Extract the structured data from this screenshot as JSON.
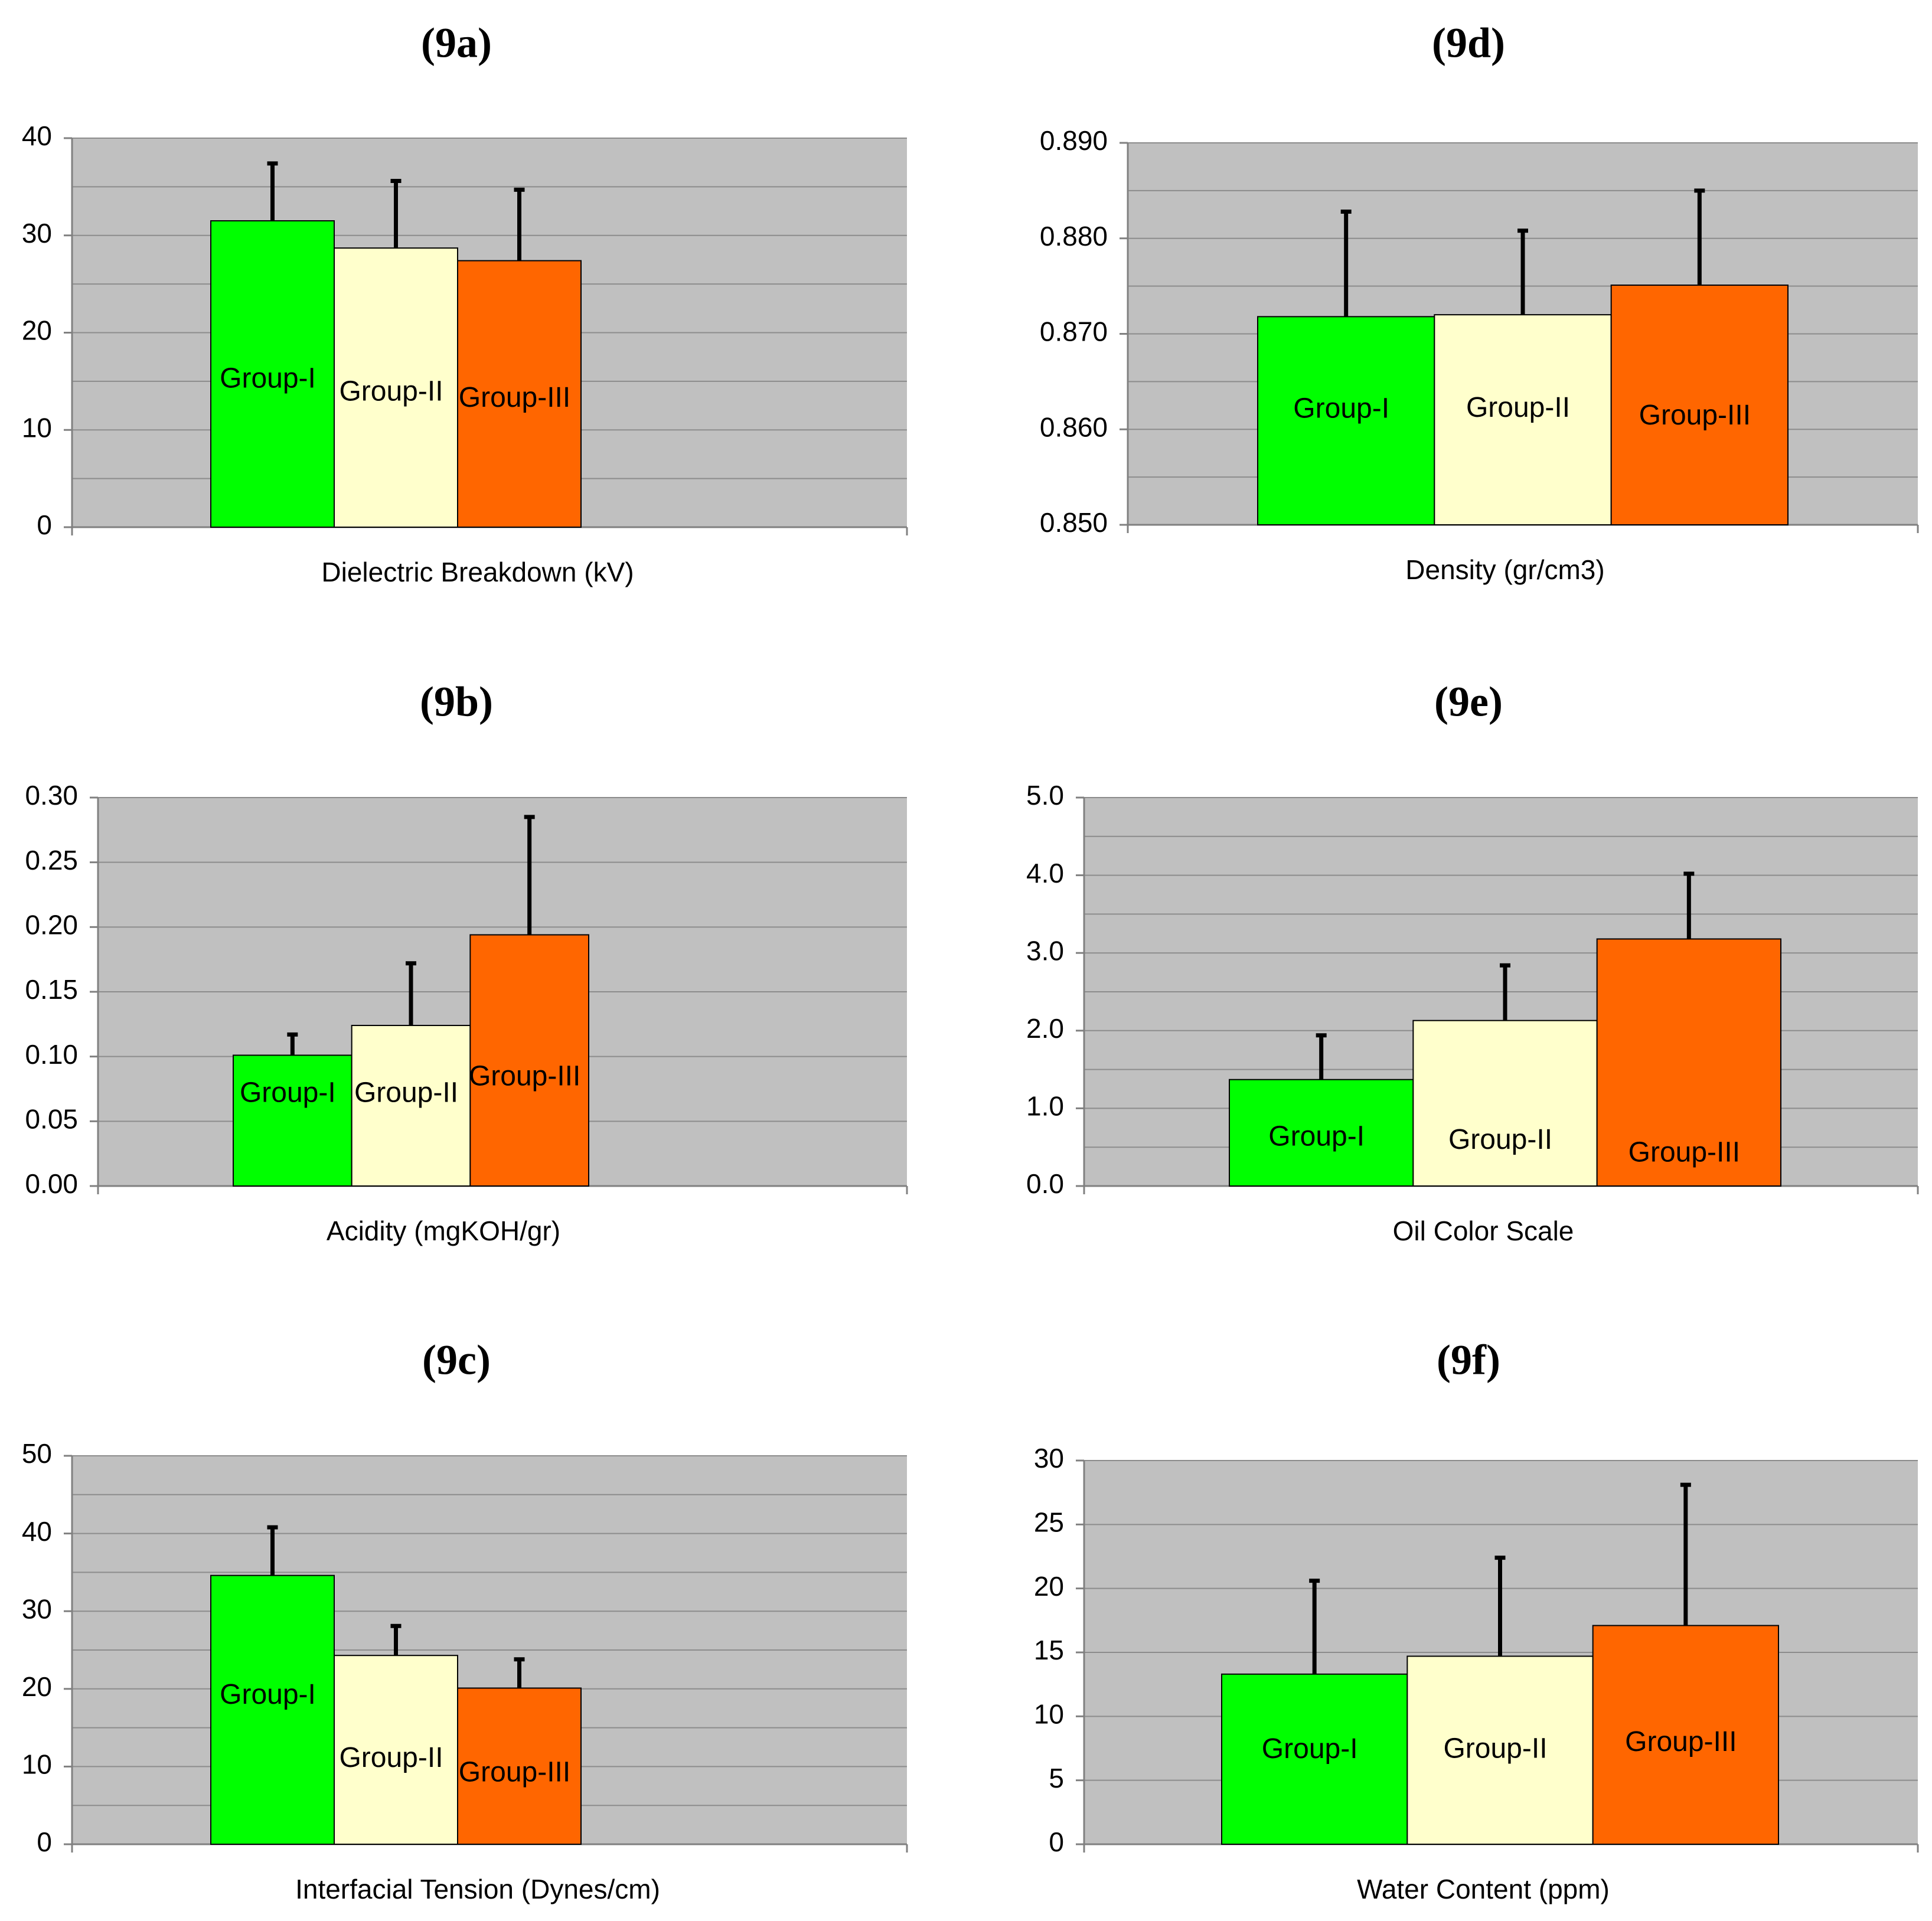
{
  "colors": {
    "plot_bg": "#c0c0c0",
    "gridline": "#8c8c8c",
    "axis": "#808080",
    "bar_outline": "#000000",
    "error_bar": "#000000",
    "group_I": "#00ff00",
    "group_II": "#ffffcc",
    "group_III": "#ff6600"
  },
  "chart_data": [
    {
      "id": "9a",
      "type": "bar",
      "title": "(9a)",
      "xlabel": "Dielectric Breakdown (kV)",
      "ylabel": "",
      "categories": [
        "Group-I",
        "Group-II",
        "Group-III"
      ],
      "values": [
        31.5,
        28.7,
        27.4
      ],
      "error_plus": [
        5.9,
        6.9,
        7.3
      ],
      "ylim": [
        0,
        40
      ],
      "major_ticks": [
        0,
        10,
        20,
        30,
        40
      ],
      "tick_labels": [
        "0",
        "10",
        "20",
        "30",
        "40"
      ],
      "minor_step": 5,
      "grid": true
    },
    {
      "id": "9b",
      "type": "bar",
      "title": "(9b)",
      "xlabel": "Acidity (mgKOH/gr)",
      "ylabel": "",
      "categories": [
        "Group-I",
        "Group-II",
        "Group-III"
      ],
      "values": [
        0.101,
        0.124,
        0.194
      ],
      "error_plus": [
        0.016,
        0.048,
        0.091
      ],
      "ylim": [
        0,
        0.3
      ],
      "major_ticks": [
        0,
        0.05,
        0.1,
        0.15,
        0.2,
        0.25,
        0.3
      ],
      "tick_labels": [
        "0.00",
        "0.05",
        "0.10",
        "0.15",
        "0.20",
        "0.25",
        "0.30"
      ],
      "minor_step": 0.05,
      "grid": true
    },
    {
      "id": "9c",
      "type": "bar",
      "title": "(9c)",
      "xlabel": "Interfacial Tension (Dynes/cm)",
      "ylabel": "",
      "categories": [
        "Group-I",
        "Group-II",
        "Group-III"
      ],
      "values": [
        34.6,
        24.3,
        20.1
      ],
      "error_plus": [
        6.2,
        3.8,
        3.7
      ],
      "ylim": [
        0,
        50
      ],
      "major_ticks": [
        0,
        10,
        20,
        30,
        40,
        50
      ],
      "tick_labels": [
        "0",
        "10",
        "20",
        "30",
        "40",
        "50"
      ],
      "minor_step": 5,
      "grid": true
    },
    {
      "id": "9d",
      "type": "bar",
      "title": "(9d)",
      "xlabel": "Density (gr/cm3)",
      "ylabel": "",
      "categories": [
        "Group-I",
        "Group-II",
        "Group-III"
      ],
      "values": [
        0.8718,
        0.872,
        0.8751
      ],
      "error_plus": [
        0.011,
        0.0088,
        0.0099
      ],
      "ylim": [
        0.85,
        0.89
      ],
      "major_ticks": [
        0.85,
        0.86,
        0.87,
        0.88,
        0.89
      ],
      "tick_labels": [
        "0.850",
        "0.860",
        "0.870",
        "0.880",
        "0.890"
      ],
      "minor_step": 0.005,
      "grid": true
    },
    {
      "id": "9e",
      "type": "bar",
      "title": "(9e)",
      "xlabel": "Oil Color Scale",
      "ylabel": "",
      "categories": [
        "Group-I",
        "Group-II",
        "Group-III"
      ],
      "values": [
        1.37,
        2.13,
        3.18
      ],
      "error_plus": [
        0.57,
        0.71,
        0.84
      ],
      "ylim": [
        0,
        5
      ],
      "major_ticks": [
        0,
        1,
        2,
        3,
        4,
        5
      ],
      "tick_labels": [
        "0.0",
        "1.0",
        "2.0",
        "3.0",
        "4.0",
        "5.0"
      ],
      "minor_step": 0.5,
      "grid": true
    },
    {
      "id": "9f",
      "type": "bar",
      "title": "(9f)",
      "xlabel": "Water Content (ppm)",
      "ylabel": "",
      "categories": [
        "Group-I",
        "Group-II",
        "Group-III"
      ],
      "values": [
        13.3,
        14.7,
        17.1
      ],
      "error_plus": [
        7.3,
        7.7,
        11.0
      ],
      "ylim": [
        0,
        30
      ],
      "major_ticks": [
        0,
        5,
        10,
        15,
        20,
        25,
        30
      ],
      "tick_labels": [
        "0",
        "5",
        "10",
        "15",
        "20",
        "25",
        "30"
      ],
      "minor_step": 5,
      "grid": true
    }
  ]
}
